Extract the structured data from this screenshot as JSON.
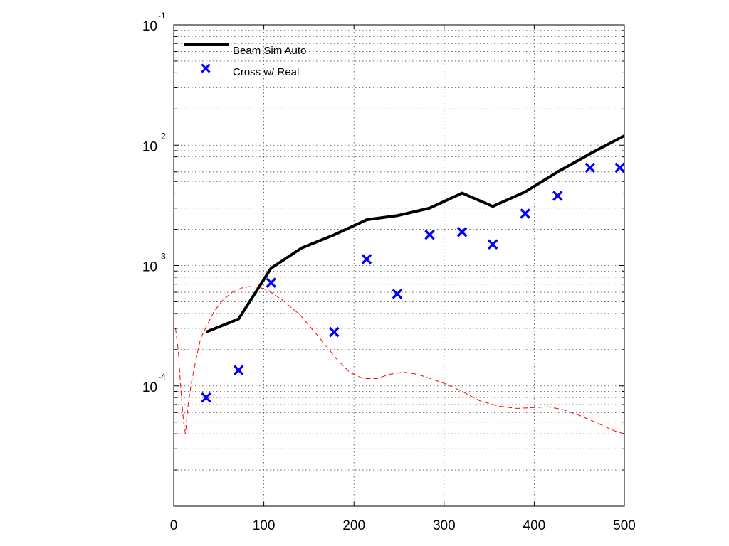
{
  "chart_data": {
    "type": "line",
    "title": "",
    "xlabel": "",
    "ylabel": "",
    "xlim": [
      0,
      500
    ],
    "ylim": [
      1e-05,
      0.1
    ],
    "yscale": "log",
    "grid": true,
    "legend_position": "top-left",
    "x_ticks": [
      0,
      100,
      200,
      300,
      400,
      500
    ],
    "x_tick_labels": [
      "0",
      "100",
      "200",
      "300",
      "400",
      "500"
    ],
    "y_ticks": [
      {
        "value": 0.1,
        "base": "10",
        "exp": "-1"
      },
      {
        "value": 0.01,
        "base": "10",
        "exp": "-2"
      },
      {
        "value": 0.001,
        "base": "10",
        "exp": "-3"
      },
      {
        "value": 0.0001,
        "base": "10",
        "exp": "-4"
      }
    ],
    "series": [
      {
        "name": "Beam Sim Auto",
        "style": "solid",
        "color": "#000000",
        "x": [
          36,
          72,
          108,
          142,
          178,
          214,
          248,
          284,
          320,
          354,
          390,
          426,
          462,
          500
        ],
        "y": [
          0.00028,
          0.00036,
          0.00095,
          0.0014,
          0.0018,
          0.0024,
          0.0026,
          0.003,
          0.004,
          0.0031,
          0.0041,
          0.006,
          0.0085,
          0.012
        ]
      },
      {
        "name": "Cross w/ Real",
        "style": "markers",
        "marker": "x",
        "color": "#0000ff",
        "x": [
          36,
          72,
          108,
          178,
          214,
          248,
          284,
          320,
          354,
          390,
          426,
          462,
          495
        ],
        "y": [
          8e-05,
          0.000135,
          0.00072,
          0.00028,
          0.00113,
          0.00058,
          0.0018,
          0.0019,
          0.0015,
          0.0027,
          0.0038,
          0.0065,
          0.0065
        ]
      },
      {
        "style": "dashed",
        "color": "#ff0000",
        "x": [
          2,
          5,
          8,
          11,
          13,
          16,
          20,
          25,
          30,
          38,
          45,
          55,
          65,
          75,
          85,
          95,
          105,
          120,
          140,
          160,
          180,
          195,
          210,
          225,
          240,
          255,
          270,
          285,
          300,
          320,
          340,
          360,
          380,
          400,
          415,
          430,
          450,
          470,
          490,
          500
        ],
        "y": [
          0.0003,
          0.0002,
          9e-05,
          5e-05,
          4e-05,
          7e-05,
          0.00011,
          0.00017,
          0.00025,
          0.00033,
          0.00042,
          0.00052,
          0.0006,
          0.00065,
          0.00067,
          0.00066,
          0.00062,
          0.00052,
          0.00039,
          0.00026,
          0.00017,
          0.00013,
          0.000115,
          0.000115,
          0.000125,
          0.00013,
          0.000125,
          0.000115,
          0.000105,
          9e-05,
          7.5e-05,
          6.8e-05,
          6.5e-05,
          6.6e-05,
          6.7e-05,
          6.4e-05,
          5.7e-05,
          4.9e-05,
          4.2e-05,
          4e-05
        ]
      }
    ]
  }
}
